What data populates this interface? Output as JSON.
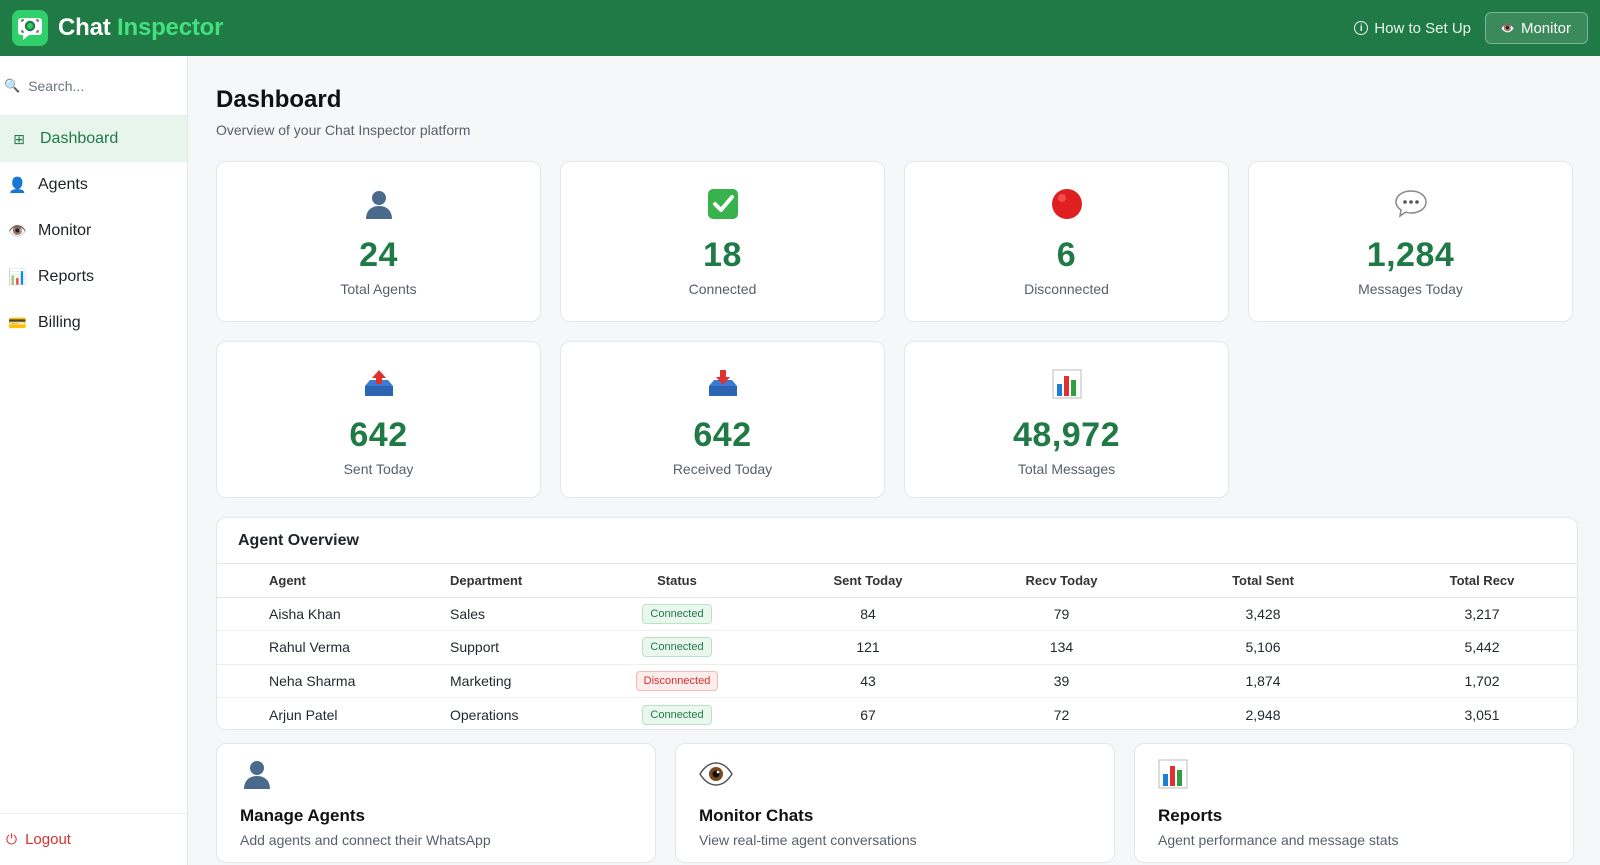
{
  "brand": {
    "name_part1": "Chat",
    "name_part2": "Inspector"
  },
  "topbar": {
    "howto_label": "How to Set Up",
    "monitor_label": "Monitor"
  },
  "sidebar": {
    "search_placeholder": "Search...",
    "items": [
      {
        "label": "Dashboard",
        "icon": "grid-icon",
        "active": true
      },
      {
        "label": "Agents",
        "icon": "person-icon",
        "active": false
      },
      {
        "label": "Monitor",
        "icon": "eye-icon",
        "active": false
      },
      {
        "label": "Reports",
        "icon": "bar-chart-icon",
        "active": false
      },
      {
        "label": "Billing",
        "icon": "credit-card-icon",
        "active": false
      }
    ],
    "logout_label": "Logout"
  },
  "page": {
    "title": "Dashboard",
    "subtitle": "Overview of your Chat Inspector platform"
  },
  "stats": [
    {
      "value": "24",
      "label": "Total Agents",
      "icon": "person-icon"
    },
    {
      "value": "18",
      "label": "Connected",
      "icon": "check-icon"
    },
    {
      "value": "6",
      "label": "Disconnected",
      "icon": "red-circle-icon"
    },
    {
      "value": "1,284",
      "label": "Messages Today",
      "icon": "speech-bubble-icon"
    },
    {
      "value": "642",
      "label": "Sent Today",
      "icon": "outbox-icon"
    },
    {
      "value": "642",
      "label": "Received Today",
      "icon": "inbox-icon"
    },
    {
      "value": "48,972",
      "label": "Total Messages",
      "icon": "bar-chart-icon"
    }
  ],
  "agent_overview": {
    "title": "Agent Overview",
    "columns": [
      "Agent",
      "Department",
      "Status",
      "Sent Today",
      "Recv Today",
      "Total Sent",
      "Total Recv"
    ],
    "rows": [
      {
        "agent": "Aisha Khan",
        "department": "Sales",
        "status": "Connected",
        "sent_today": "84",
        "recv_today": "79",
        "total_sent": "3,428",
        "total_recv": "3,217"
      },
      {
        "agent": "Rahul Verma",
        "department": "Support",
        "status": "Connected",
        "sent_today": "121",
        "recv_today": "134",
        "total_sent": "5,106",
        "total_recv": "5,442"
      },
      {
        "agent": "Neha Sharma",
        "department": "Marketing",
        "status": "Disconnected",
        "sent_today": "43",
        "recv_today": "39",
        "total_sent": "1,874",
        "total_recv": "1,702"
      },
      {
        "agent": "Arjun Patel",
        "department": "Operations",
        "status": "Connected",
        "sent_today": "67",
        "recv_today": "72",
        "total_sent": "2,948",
        "total_recv": "3,051"
      }
    ]
  },
  "quick_links": [
    {
      "title": "Manage Agents",
      "subtitle": "Add agents and connect their WhatsApp",
      "icon": "person-icon"
    },
    {
      "title": "Monitor Chats",
      "subtitle": "View real-time agent conversations",
      "icon": "eye-icon"
    },
    {
      "title": "Reports",
      "subtitle": "Agent performance and message stats",
      "icon": "bar-chart-icon"
    }
  ],
  "colors": {
    "brand_green": "#1f7a45",
    "accent_green": "#44e07e",
    "danger_red": "#d9302c"
  }
}
